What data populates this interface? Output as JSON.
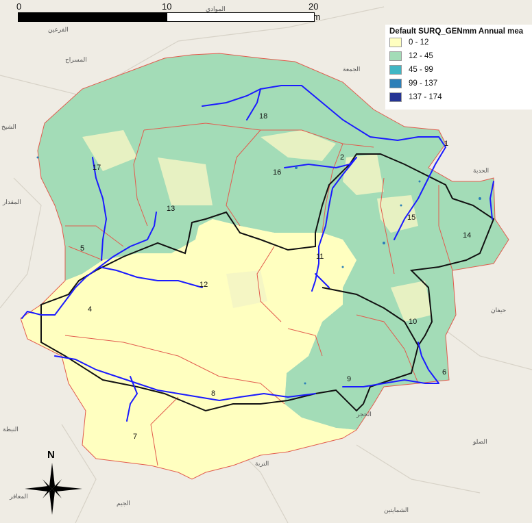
{
  "scale_bar": {
    "labels": [
      "0",
      "10",
      "20 km"
    ]
  },
  "legend": {
    "title": "Default SURQ_GENmm Annual mea",
    "classes": [
      {
        "label": "0 - 12",
        "color": "#ffffc0"
      },
      {
        "label": "12 - 45",
        "color": "#a3dcb7"
      },
      {
        "label": "45 - 99",
        "color": "#40b6c4"
      },
      {
        "label": "99 - 137",
        "color": "#2c7fb8"
      },
      {
        "label": "137 - 174",
        "color": "#253494"
      }
    ]
  },
  "subbasins": [
    "1",
    "2",
    "4",
    "5",
    "6",
    "7",
    "8",
    "9",
    "10",
    "11",
    "12",
    "13",
    "14",
    "15",
    "16",
    "17",
    "18"
  ],
  "north_arrow": {
    "label": "N"
  },
  "place_labels": [
    "الفرعين",
    "المسراح",
    "الشيخ",
    "المقدار",
    "النبطة",
    "الحدبة",
    "التربة",
    "حيفان",
    "الصلو",
    "الحجر",
    "الموادي",
    "الجمعة",
    "الجيم",
    "المعافر",
    "الشمايتين"
  ],
  "colors": {
    "low": "#ffffc0",
    "mid": "#a3dcb7",
    "stream": "#1a1aff",
    "outer_boundary": "#e25b4d",
    "inner_boundary": "#111111",
    "basemap": "#efece4"
  }
}
